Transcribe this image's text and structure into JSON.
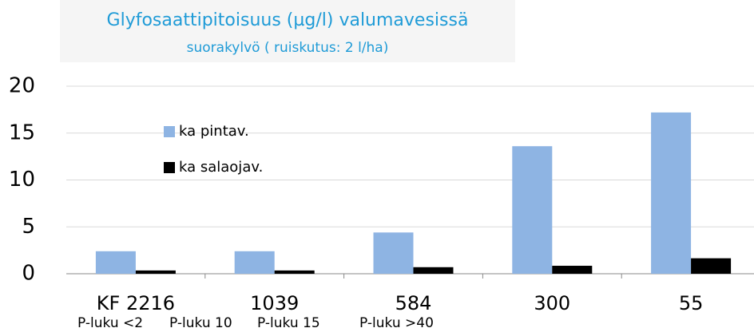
{
  "chart_data": {
    "type": "bar",
    "title": "Glyfosaattipitoisuus (µg/l) valumavesissä",
    "subtitle": "suorakylvö ( ruiskutus: 2 l/ha)",
    "categories": [
      "KF 2216",
      "1039",
      "584",
      "300",
      "55"
    ],
    "series": [
      {
        "name": "ka pintav.",
        "color": "#8eb4e3",
        "values": [
          2.4,
          2.4,
          4.4,
          13.6,
          17.2
        ]
      },
      {
        "name": "ka salaojav.",
        "color": "#000000",
        "values": [
          0.35,
          0.35,
          0.7,
          0.85,
          1.65
        ]
      }
    ],
    "annotations": [
      "P-luku <2",
      "P-luku 10",
      "P-luku 15",
      "P-luku >40"
    ],
    "ylim": [
      0,
      20
    ],
    "yticks": [
      0,
      5,
      10,
      15,
      20
    ],
    "grid": true
  }
}
